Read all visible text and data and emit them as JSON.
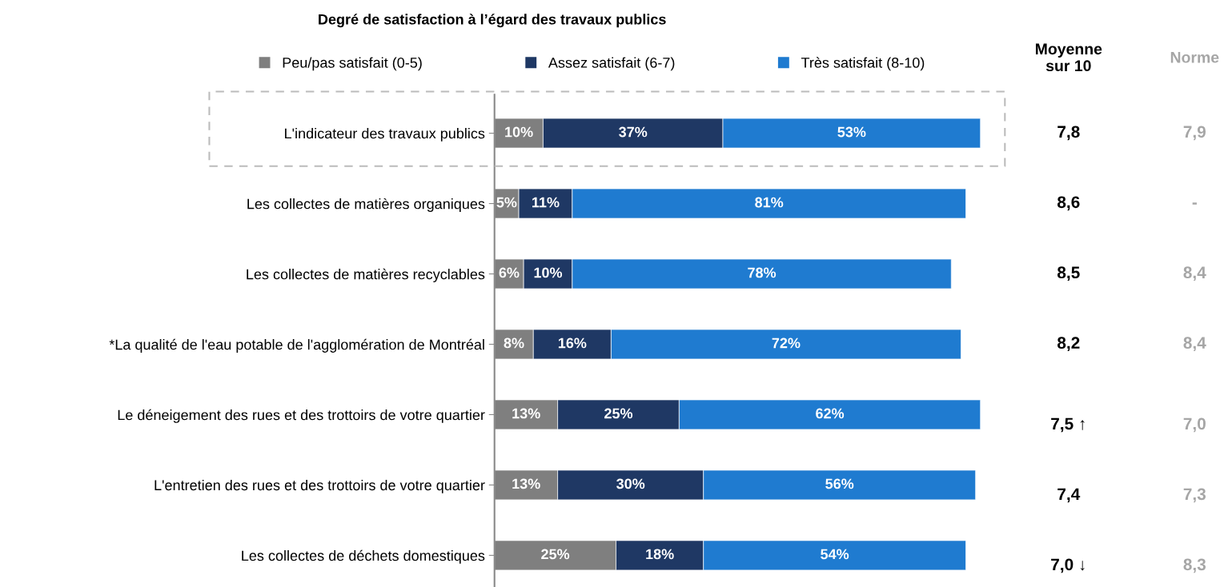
{
  "chart_data": {
    "type": "bar",
    "orientation": "horizontal",
    "stacked": true,
    "title": "Degré de satisfaction à l’égard des travaux publics",
    "categories": [
      "L'indicateur des travaux publics",
      "Les collectes de matières organiques",
      "Les collectes de matières recyclables",
      "*La qualité de l'eau potable de l'agglomération de Montréal",
      "Le déneigement des rues et des trottoirs de votre quartier",
      "L'entretien des rues et des trottoirs de votre quartier",
      "Les collectes de déchets domestiques"
    ],
    "series": [
      {
        "name": "Peu/pas satisfait (0-5)",
        "color": "#7f7f7f",
        "values": [
          10,
          5,
          6,
          8,
          13,
          13,
          25
        ],
        "value_labels": [
          "10%",
          "5%",
          "6%",
          "8%",
          "13%",
          "13%",
          "25%"
        ]
      },
      {
        "name": "Assez satisfait (6-7)",
        "color": "#1f3864",
        "values": [
          37,
          11,
          10,
          16,
          25,
          30,
          18
        ],
        "value_labels": [
          "37%",
          "11%",
          "10%",
          "16%",
          "25%",
          "30%",
          "18%"
        ]
      },
      {
        "name": "Très satisfait (8-10)",
        "color": "#1f7bd0",
        "values": [
          53,
          81,
          78,
          72,
          62,
          56,
          54
        ],
        "value_labels": [
          "53%",
          "81%",
          "78%",
          "72%",
          "62%",
          "56%",
          "54%"
        ]
      }
    ],
    "tick_labels": "y",
    "legend": "top",
    "annotations": [
      "Moyenne\nsur 10",
      "Norme",
      "7,8",
      "7,9",
      "8,6",
      "-",
      "8,5",
      "8,4",
      "8,2",
      "8,4",
      "7,5 ↑",
      "7,0",
      "7,4",
      "7,3",
      "7,0 ↓",
      "8,3"
    ]
  }
}
